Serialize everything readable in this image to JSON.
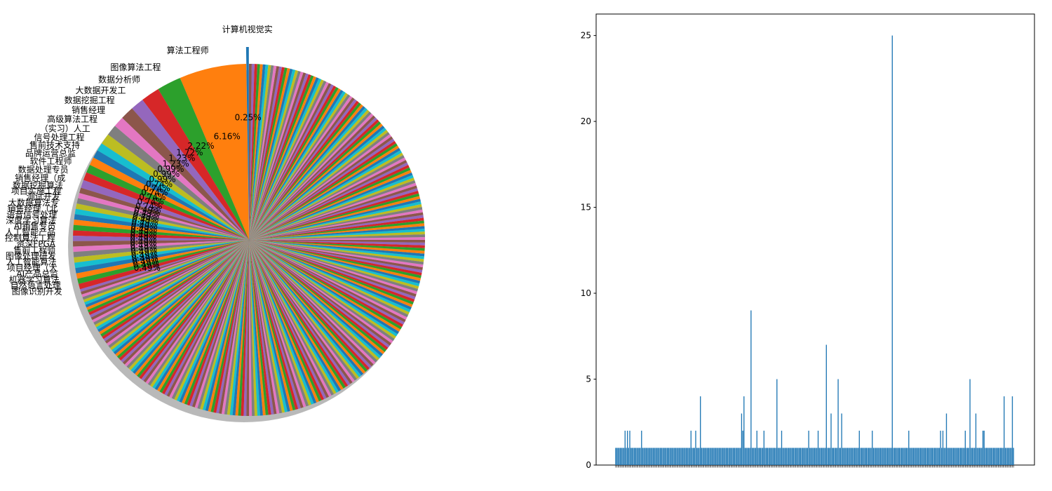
{
  "colors": {
    "palette": [
      "#1f77b4",
      "#ff7f0e",
      "#2ca02c",
      "#d62728",
      "#9467bd",
      "#8c564b",
      "#e377c2",
      "#7f7f7f",
      "#bcbd22",
      "#17becf"
    ],
    "bar": "#1f77b4",
    "axis": "#000000"
  },
  "chart_data": [
    {
      "type": "pie",
      "title": "",
      "slices": [
        {
          "label": "计算机视觉实",
          "pct": "0.25%",
          "value": 0.25
        },
        {
          "label": "算法工程师",
          "pct": "6.16%",
          "value": 6.16
        },
        {
          "label": "图像算法工程",
          "pct": "2.22%",
          "value": 2.22
        },
        {
          "label": "数据分析师",
          "pct": "1.72%",
          "value": 1.72
        },
        {
          "label": "大数据开发工",
          "pct": "1.23%",
          "value": 1.23
        },
        {
          "label": "数据挖掘工程",
          "pct": "1.23%",
          "value": 1.23
        },
        {
          "label": "销售经理",
          "pct": "0.99%",
          "value": 0.99
        },
        {
          "label": "高级算法工程",
          "pct": "0.99%",
          "value": 0.99
        },
        {
          "label": "（实习）人工",
          "pct": "0.99%",
          "value": 0.99
        },
        {
          "label": "信号处理工程",
          "pct": "0.74%",
          "value": 0.74
        },
        {
          "label": "售前技术支持",
          "pct": "0.74%",
          "value": 0.74
        },
        {
          "label": "品牌运营总监",
          "pct": "0.74%",
          "value": 0.74
        },
        {
          "label": "软件工程师",
          "pct": "0.74%",
          "value": 0.74
        },
        {
          "label": "数据处理专员",
          "pct": "0.74%",
          "value": 0.74
        },
        {
          "label": "销售经理（成",
          "pct": "0.74%",
          "value": 0.74
        },
        {
          "label": "数据挖掘算法",
          "pct": "0.49%",
          "value": 0.49
        },
        {
          "label": "项目实施工程",
          "pct": "0.49%",
          "value": 0.49
        },
        {
          "label": "测试开发",
          "pct": "0.49%",
          "value": 0.49
        },
        {
          "label": "大数据算法专",
          "pct": "0.49%",
          "value": 0.49
        },
        {
          "label": "销售经理（北",
          "pct": "0.49%",
          "value": 0.49
        },
        {
          "label": "语音信号处理",
          "pct": "0.49%",
          "value": 0.49
        },
        {
          "label": "深度学习算法",
          "pct": "0.49%",
          "value": 0.49
        },
        {
          "label": "AI销售专员",
          "pct": "0.49%",
          "value": 0.49
        },
        {
          "label": "人工智能产品",
          "pct": "0.49%",
          "value": 0.49
        },
        {
          "label": "控制算法工程",
          "pct": "0.49%",
          "value": 0.49
        },
        {
          "label": "资深FPGA",
          "pct": "0.49%",
          "value": 0.49
        },
        {
          "label": "售前工程师",
          "pct": "0.49%",
          "value": 0.49
        },
        {
          "label": "图像处理研发",
          "pct": "0.49%",
          "value": 0.49
        },
        {
          "label": "人工智能算法",
          "pct": "0.49%",
          "value": 0.49
        },
        {
          "label": "项目经理（大",
          "pct": "0.49%",
          "value": 0.49
        },
        {
          "label": "AI产品总监",
          "pct": "0.49%",
          "value": 0.49
        },
        {
          "label": "机器学习算法",
          "pct": "0.49%",
          "value": 0.49
        },
        {
          "label": "自然语言处理",
          "pct": "0.49%",
          "value": 0.49
        },
        {
          "label": "图像识别开发",
          "pct": "0.49%",
          "value": 0.49
        }
      ],
      "other_slice_value": 0.25,
      "shadow": true
    },
    {
      "type": "bar",
      "title": "",
      "xlabel": "",
      "ylabel": "",
      "ylim": [
        0,
        26.25
      ],
      "yticks": [
        "0",
        "5",
        "10",
        "15",
        "20",
        "25"
      ],
      "values": [
        1,
        1,
        1,
        1,
        1,
        1,
        1,
        1,
        2,
        1,
        2,
        1,
        2,
        1,
        1,
        1,
        1,
        1,
        1,
        1,
        1,
        1,
        2,
        1,
        1,
        1,
        1,
        1,
        1,
        1,
        1,
        1,
        1,
        1,
        1,
        1,
        1,
        1,
        1,
        1,
        1,
        1,
        1,
        1,
        1,
        1,
        1,
        1,
        1,
        1,
        1,
        1,
        1,
        1,
        1,
        1,
        1,
        1,
        1,
        1,
        1,
        1,
        1,
        1,
        2,
        1,
        1,
        1,
        2,
        1,
        1,
        1,
        4,
        1,
        1,
        1,
        1,
        1,
        1,
        1,
        1,
        1,
        1,
        1,
        1,
        1,
        1,
        1,
        1,
        1,
        1,
        1,
        1,
        1,
        1,
        1,
        1,
        1,
        1,
        1,
        1,
        1,
        1,
        1,
        1,
        1,
        1,
        3,
        2,
        4,
        1,
        1,
        1,
        1,
        1,
        9,
        1,
        1,
        1,
        1,
        2,
        1,
        1,
        1,
        1,
        1,
        2,
        1,
        1,
        1,
        1,
        1,
        1,
        1,
        1,
        1,
        1,
        5,
        1,
        1,
        1,
        2,
        1,
        1,
        1,
        1,
        1,
        1,
        1,
        1,
        1,
        1,
        1,
        1,
        1,
        1,
        1,
        1,
        1,
        1,
        1,
        1,
        1,
        1,
        2,
        1,
        1,
        1,
        1,
        1,
        1,
        1,
        2,
        1,
        1,
        1,
        1,
        1,
        1,
        7,
        1,
        1,
        1,
        3,
        1,
        1,
        1,
        1,
        1,
        5,
        1,
        1,
        3,
        1,
        1,
        1,
        1,
        1,
        1,
        1,
        1,
        1,
        1,
        1,
        1,
        1,
        1,
        2,
        1,
        1,
        1,
        1,
        1,
        1,
        1,
        1,
        1,
        1,
        2,
        1,
        1,
        1,
        1,
        1,
        1,
        1,
        1,
        1,
        1,
        1,
        1,
        1,
        1,
        1,
        1,
        25,
        1,
        1,
        1,
        1,
        1,
        1,
        1,
        1,
        1,
        1,
        1,
        1,
        1,
        2,
        1,
        1,
        1,
        1,
        1,
        1,
        1,
        1,
        1,
        1,
        1,
        1,
        1,
        1,
        1,
        1,
        1,
        1,
        1,
        1,
        1,
        1,
        1,
        1,
        1,
        1,
        2,
        1,
        2,
        1,
        1,
        3,
        1,
        1,
        1,
        1,
        1,
        1,
        1,
        1,
        1,
        1,
        1,
        1,
        1,
        1,
        1,
        2,
        1,
        1,
        1,
        5,
        1,
        1,
        1,
        1,
        3,
        1,
        1,
        1,
        1,
        1,
        2,
        2,
        1,
        1,
        1,
        1,
        1,
        1,
        1,
        1,
        1,
        1,
        1,
        1,
        1,
        1,
        1,
        1,
        4,
        1,
        1,
        1,
        1,
        1,
        1,
        4,
        1
      ]
    }
  ]
}
